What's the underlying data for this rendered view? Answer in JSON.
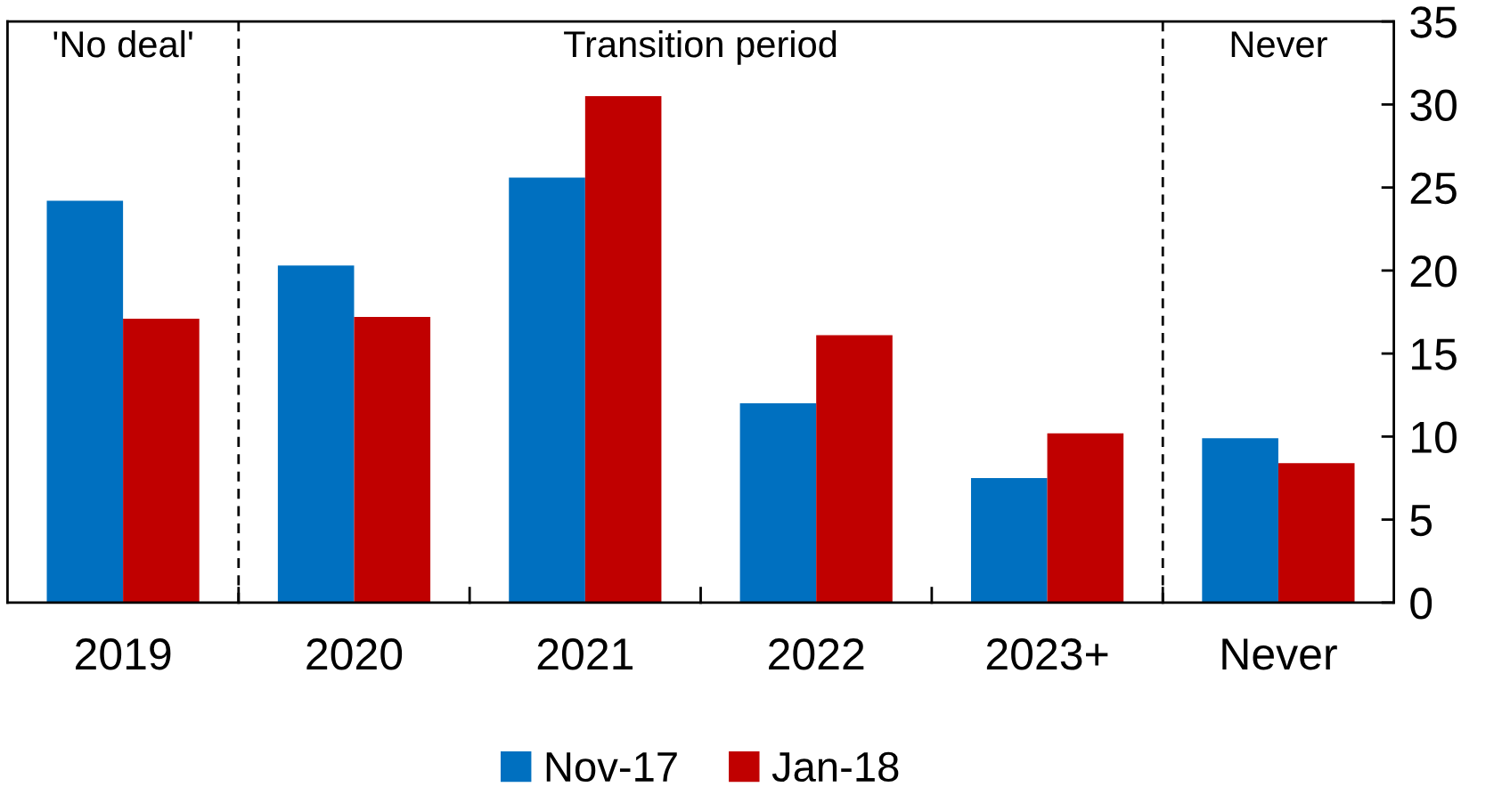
{
  "chart_data": {
    "type": "bar",
    "categories": [
      "2019",
      "2020",
      "2021",
      "2022",
      "2023+",
      "Never"
    ],
    "series": [
      {
        "name": "Nov-17",
        "color": "#0070c0",
        "values": [
          24.2,
          20.3,
          25.6,
          12.0,
          7.5,
          9.9
        ]
      },
      {
        "name": "Jan-18",
        "color": "#c00000",
        "values": [
          17.1,
          17.2,
          30.5,
          16.1,
          10.2,
          8.4
        ]
      }
    ],
    "ylim": [
      0,
      35
    ],
    "yticks": [
      0,
      5,
      10,
      15,
      20,
      25,
      30,
      35
    ],
    "annotations": [
      "'No deal'",
      "Transition period",
      "Never"
    ],
    "grid": false,
    "legend": "bottom"
  }
}
